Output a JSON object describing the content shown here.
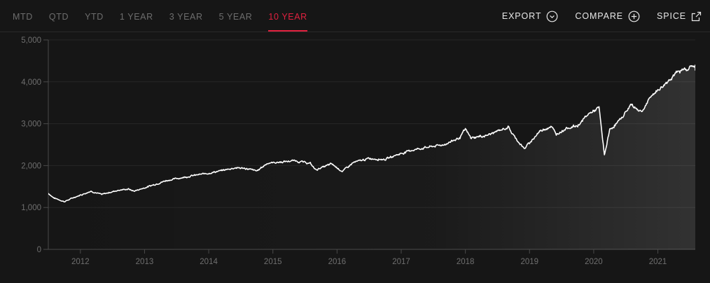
{
  "tabs": [
    {
      "label": "MTD",
      "active": false
    },
    {
      "label": "QTD",
      "active": false
    },
    {
      "label": "YTD",
      "active": false
    },
    {
      "label": "1 YEAR",
      "active": false
    },
    {
      "label": "3 YEAR",
      "active": false
    },
    {
      "label": "5 YEAR",
      "active": false
    },
    {
      "label": "10 YEAR",
      "active": true
    }
  ],
  "actions": {
    "export": {
      "label": "EXPORT",
      "icon": "chevron-down-circle-icon"
    },
    "compare": {
      "label": "COMPARE",
      "icon": "plus-circle-icon"
    },
    "spice": {
      "label": "SPICE",
      "icon": "external-link-icon"
    }
  },
  "colors": {
    "accent": "#e0213f",
    "line": "#ffffff",
    "background": "#161616"
  },
  "chart_data": {
    "type": "area",
    "title": "",
    "xlabel": "",
    "ylabel": "",
    "ylim": [
      0,
      5000
    ],
    "xlim": [
      "2011-07",
      "2021-08"
    ],
    "grid": true,
    "y_ticks": [
      "0",
      "1,000",
      "2,000",
      "3,000",
      "4,000",
      "5,000"
    ],
    "x_ticks": [
      "2012",
      "2013",
      "2014",
      "2015",
      "2016",
      "2017",
      "2018",
      "2019",
      "2020",
      "2021"
    ],
    "series": [
      {
        "x": [
          "2011-07",
          "2011-08",
          "2011-10",
          "2011-12",
          "2012-03",
          "2012-05",
          "2012-08",
          "2012-10",
          "2012-11",
          "2013-01",
          "2013-05",
          "2013-07",
          "2013-10",
          "2014-01",
          "2014-03",
          "2014-06",
          "2014-08",
          "2014-10",
          "2014-12",
          "2015-03",
          "2015-05",
          "2015-08",
          "2015-09",
          "2015-12",
          "2016-02",
          "2016-04",
          "2016-07",
          "2016-10",
          "2016-12",
          "2017-03",
          "2017-06",
          "2017-09",
          "2017-12",
          "2018-01",
          "2018-02",
          "2018-05",
          "2018-09",
          "2018-10",
          "2018-12",
          "2019-03",
          "2019-05",
          "2019-06",
          "2019-08",
          "2019-10",
          "2019-12",
          "2020-02",
          "2020-03",
          "2020-04",
          "2020-06",
          "2020-08",
          "2020-09",
          "2020-10",
          "2020-12",
          "2021-02",
          "2021-04",
          "2021-06",
          "2021-08"
        ],
        "values": [
          1340,
          1230,
          1140,
          1250,
          1390,
          1310,
          1410,
          1440,
          1390,
          1470,
          1640,
          1690,
          1760,
          1820,
          1870,
          1950,
          1930,
          1870,
          2060,
          2090,
          2120,
          2050,
          1900,
          2040,
          1860,
          2070,
          2170,
          2150,
          2250,
          2370,
          2440,
          2500,
          2670,
          2870,
          2660,
          2720,
          2920,
          2720,
          2400,
          2830,
          2940,
          2750,
          2900,
          2950,
          3230,
          3380,
          2250,
          2850,
          3100,
          3460,
          3360,
          3290,
          3700,
          3900,
          4170,
          4300,
          4400
        ]
      }
    ]
  }
}
